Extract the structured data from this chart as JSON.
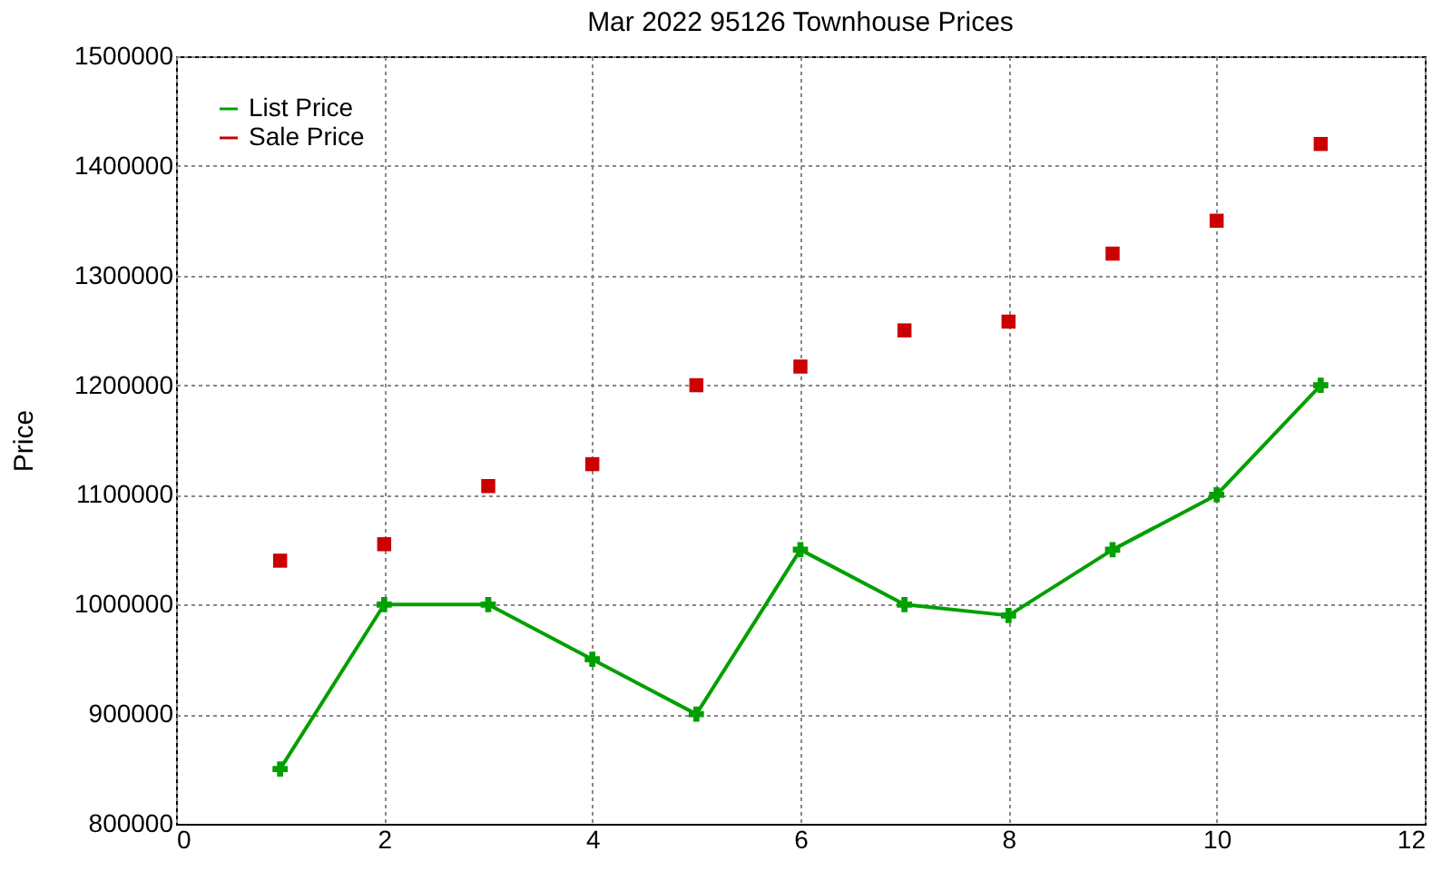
{
  "chart_data": {
    "type": "line",
    "title": "Mar 2022 95126 Townhouse Prices",
    "ylabel": "Price",
    "x": [
      1,
      2,
      3,
      4,
      5,
      6,
      7,
      8,
      9,
      10,
      11
    ],
    "series": [
      {
        "name": "List Price",
        "type": "line",
        "marker": "cross",
        "color": "#00a000",
        "values": [
          850000,
          1000000,
          1000000,
          950000,
          900000,
          1050000,
          1000000,
          990000,
          1050000,
          1100000,
          1200000
        ]
      },
      {
        "name": "Sale Price",
        "type": "scatter",
        "marker": "square",
        "color": "#cc0000",
        "values": [
          1040000,
          1055000,
          1108000,
          1128000,
          1200000,
          1217000,
          1250000,
          1258000,
          1320000,
          1350000,
          1420000
        ]
      }
    ],
    "xlim": [
      0,
      12
    ],
    "xticks": [
      0,
      2,
      4,
      6,
      8,
      10,
      12
    ],
    "ylim": [
      800000,
      1500000
    ],
    "yticks": [
      800000,
      900000,
      1000000,
      1100000,
      1200000,
      1300000,
      1400000,
      1500000
    ],
    "grid": true,
    "legend": "top left"
  }
}
